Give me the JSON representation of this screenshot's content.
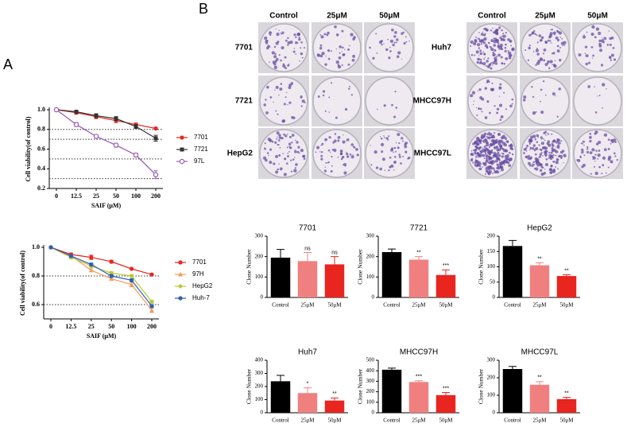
{
  "panel_labels": [
    "A",
    "B"
  ],
  "colony_images": {
    "left": {
      "columns": [
        "Control",
        "25μM",
        "50μM"
      ],
      "rows": [
        "7701",
        "7721",
        "HepG2"
      ]
    },
    "right": {
      "columns": [
        "Control",
        "25μM",
        "50μM"
      ],
      "rows": [
        "Huh7",
        "MHCC97H",
        "MHCC97L"
      ]
    }
  },
  "chart_data": [
    {
      "type": "line",
      "xlabel": "SAIF (μM)",
      "ylabel": "Cell viability(of control)",
      "categories": [
        "0",
        "12.5",
        "25",
        "50",
        "100",
        "200"
      ],
      "ylim": [
        0.2,
        1.0
      ],
      "yticks": [
        0.2,
        0.4,
        0.6,
        0.8,
        {
          "value": 1.0,
          "label": "1.0"
        }
      ],
      "reference_lines": [
        0.8,
        0.7,
        0.5,
        0.3
      ],
      "series": [
        {
          "name": "7701",
          "color": "#e8251f",
          "marker": "circle",
          "values": [
            1.0,
            0.97,
            0.93,
            0.89,
            0.85,
            0.81
          ],
          "errors": [
            0.01,
            0.015,
            0.02,
            0.02,
            0.015,
            0.01
          ]
        },
        {
          "name": "7721",
          "color": "#333333",
          "marker": "square",
          "values": [
            1.0,
            0.98,
            0.94,
            0.91,
            0.83,
            0.71
          ],
          "errors": [
            0.01,
            0.01,
            0.02,
            0.02,
            0.02,
            0.03
          ]
        },
        {
          "name": "97L",
          "color": "#9b59b6",
          "marker": "open-circle",
          "values": [
            1.0,
            0.85,
            0.73,
            0.64,
            0.54,
            0.34
          ],
          "errors": [
            0.01,
            0.02,
            0.015,
            0.02,
            0.02,
            0.04
          ]
        }
      ]
    },
    {
      "type": "line",
      "xlabel": "SAIF (μM)",
      "ylabel": "Cell viability(of control)",
      "categories": [
        "0",
        "12.5",
        "25",
        "50",
        "100",
        "200"
      ],
      "ylim": [
        0.5,
        1.0
      ],
      "yticks": [
        0.6,
        0.8,
        {
          "value": 1.0,
          "label": "1.0"
        }
      ],
      "reference_lines": [
        0.8,
        0.6
      ],
      "series": [
        {
          "name": "7701",
          "color": "#e8251f",
          "marker": "circle",
          "values": [
            1.0,
            0.95,
            0.93,
            0.9,
            0.85,
            0.81
          ],
          "errors": [
            0.005,
            0.01,
            0.015,
            0.01,
            0.005,
            0.005
          ]
        },
        {
          "name": "97H",
          "color": "#f39c5a",
          "marker": "triangle",
          "values": [
            1.0,
            0.94,
            0.84,
            0.78,
            0.74,
            0.56
          ],
          "errors": [
            0.005,
            0.01,
            0.01,
            0.01,
            0.015,
            0.015
          ]
        },
        {
          "name": "HepG2",
          "color": "#b5c934",
          "marker": "diamond",
          "values": [
            1.0,
            0.93,
            0.87,
            0.82,
            0.8,
            0.62
          ],
          "errors": [
            0.005,
            0.01,
            0.01,
            0.01,
            0.01,
            0.01
          ]
        },
        {
          "name": "Huh-7",
          "color": "#2f5fb3",
          "marker": "circle",
          "values": [
            1.0,
            0.94,
            0.88,
            0.8,
            0.77,
            0.59
          ],
          "errors": [
            0.005,
            0.01,
            0.01,
            0.01,
            0.01,
            0.01
          ]
        }
      ]
    },
    {
      "type": "bar",
      "title": "7701",
      "ylabel": "Clone Number",
      "categories": [
        "Control",
        "25μM",
        "50μM"
      ],
      "colors": [
        "#000000",
        "#f08080",
        "#e8251f"
      ],
      "ylim": [
        0,
        300
      ],
      "yticks": [
        0,
        100,
        200,
        300
      ],
      "values": [
        195,
        178,
        162
      ],
      "errors": [
        40,
        42,
        38
      ],
      "significance": [
        null,
        "ns",
        "ns"
      ]
    },
    {
      "type": "bar",
      "title": "7721",
      "ylabel": "Clone Number",
      "categories": [
        "Control",
        "25μM",
        "50μM"
      ],
      "colors": [
        "#000000",
        "#f08080",
        "#e8251f"
      ],
      "ylim": [
        0,
        300
      ],
      "yticks": [
        0,
        100,
        200,
        300
      ],
      "values": [
        222,
        185,
        110
      ],
      "errors": [
        15,
        15,
        25
      ],
      "significance": [
        null,
        "**",
        "***"
      ]
    },
    {
      "type": "bar",
      "title": "HepG2",
      "ylabel": "Clone Number",
      "categories": [
        "Control",
        "25μM",
        "50μM"
      ],
      "colors": [
        "#000000",
        "#f08080",
        "#e8251f"
      ],
      "ylim": [
        0,
        200
      ],
      "yticks": [
        0,
        50,
        100,
        150,
        200
      ],
      "values": [
        168,
        105,
        70
      ],
      "errors": [
        18,
        8,
        4
      ],
      "significance": [
        null,
        "**",
        "**"
      ]
    },
    {
      "type": "bar",
      "title": "Huh7",
      "ylabel": "Clone Number",
      "categories": [
        "Control",
        "25μM",
        "50μM"
      ],
      "colors": [
        "#000000",
        "#f08080",
        "#e8251f"
      ],
      "ylim": [
        0,
        400
      ],
      "yticks": [
        0,
        100,
        200,
        300,
        400
      ],
      "values": [
        240,
        150,
        93
      ],
      "errors": [
        45,
        40,
        20
      ],
      "significance": [
        null,
        "*",
        "**"
      ]
    },
    {
      "type": "bar",
      "title": "MHCC97H",
      "ylabel": "Clone Number",
      "categories": [
        "Control",
        "25μM",
        "50μM"
      ],
      "colors": [
        "#000000",
        "#f08080",
        "#e8251f"
      ],
      "ylim": [
        0,
        500
      ],
      "yticks": [
        0,
        100,
        200,
        300,
        400,
        500
      ],
      "values": [
        410,
        293,
        168
      ],
      "errors": [
        15,
        12,
        25
      ],
      "significance": [
        null,
        "***",
        "***"
      ]
    },
    {
      "type": "bar",
      "title": "MHCC97L",
      "ylabel": "Clone Number",
      "categories": [
        "Control",
        "25μM",
        "50μM"
      ],
      "colors": [
        "#000000",
        "#f08080",
        "#e8251f"
      ],
      "ylim": [
        0,
        300
      ],
      "yticks": [
        0,
        100,
        200,
        300
      ],
      "values": [
        250,
        160,
        78
      ],
      "errors": [
        15,
        18,
        10
      ],
      "significance": [
        null,
        "**",
        "**"
      ]
    }
  ]
}
